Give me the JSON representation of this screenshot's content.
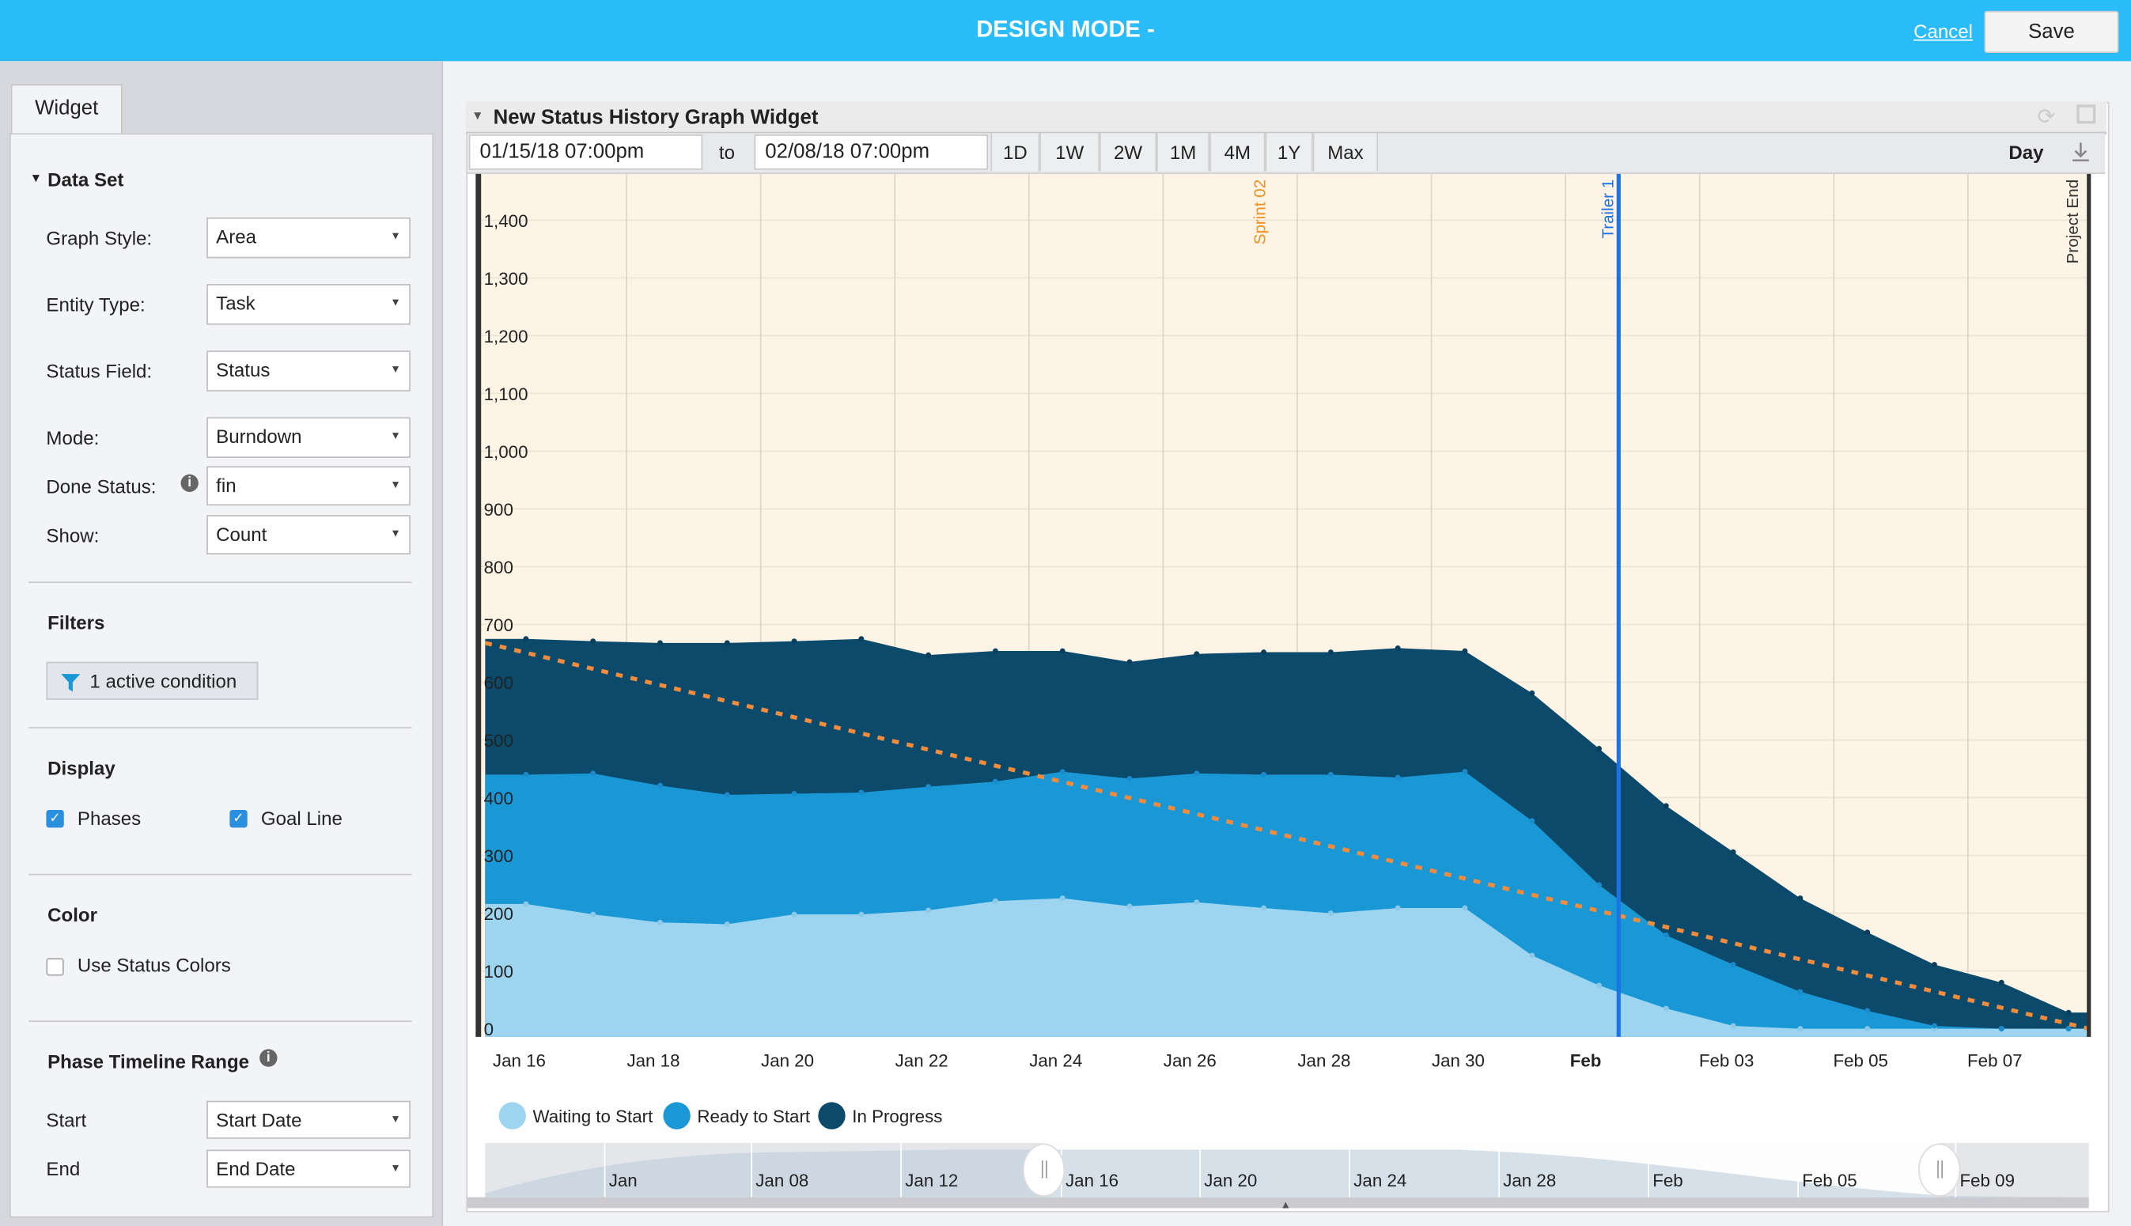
{
  "topbar": {
    "title": "DESIGN MODE -",
    "cancel_label": "Cancel",
    "save_label": "Save"
  },
  "sidebar": {
    "tab_label": "Widget",
    "dataset": {
      "header": "Data Set",
      "fields": [
        {
          "label": "Graph Style:",
          "value": "Area"
        },
        {
          "label": "Entity Type:",
          "value": "Task"
        },
        {
          "label": "Status Field:",
          "value": "Status"
        },
        {
          "label": "Mode:",
          "value": "Burndown"
        },
        {
          "label": "Done Status:",
          "value": "fin"
        },
        {
          "label": "Show:",
          "value": "Count"
        }
      ]
    },
    "filters": {
      "header": "Filters",
      "button_label": "1 active condition"
    },
    "display": {
      "header": "Display",
      "phases_label": "Phases",
      "phases_checked": true,
      "goal_label": "Goal Line",
      "goal_checked": true
    },
    "color": {
      "header": "Color",
      "status_colors_label": "Use Status Colors",
      "status_colors_checked": false
    },
    "phase_range": {
      "header": "Phase Timeline Range",
      "start_label": "Start",
      "start_value": "Start Date",
      "end_label": "End",
      "end_value": "End Date"
    }
  },
  "widget": {
    "title": "New Status History Graph Widget",
    "from_date": "01/15/18 07:00pm",
    "to_label": "to",
    "to_date": "02/08/18 07:00pm",
    "ranges": [
      "1D",
      "1W",
      "2W",
      "1M",
      "4M",
      "1Y",
      "Max"
    ],
    "interval": "Day"
  },
  "chart_data": {
    "type": "area",
    "stacked": true,
    "ylim": [
      0,
      1450
    ],
    "yticks": [
      "0",
      "100",
      "200",
      "300",
      "400",
      "500",
      "600",
      "700",
      "800",
      "900",
      "1,000",
      "1,100",
      "1,200",
      "1,300",
      "1,400"
    ],
    "x": [
      "Jan 16",
      "Jan 17",
      "Jan 18",
      "Jan 19",
      "Jan 20",
      "Jan 21",
      "Jan 22",
      "Jan 23",
      "Jan 24",
      "Jan 25",
      "Jan 26",
      "Jan 27",
      "Jan 28",
      "Jan 29",
      "Jan 30",
      "Jan 31",
      "Feb 01",
      "Feb 02",
      "Feb 03",
      "Feb 04",
      "Feb 05",
      "Feb 06",
      "Feb 07",
      "Feb 08"
    ],
    "xtick_labels": [
      "Jan 16",
      "Jan 18",
      "Jan 20",
      "Jan 22",
      "Jan 24",
      "Jan 26",
      "Jan 28",
      "Jan 30",
      "Feb",
      "Feb 03",
      "Feb 05",
      "Feb 07"
    ],
    "series": [
      {
        "name": "Waiting to Start",
        "color": "#9dd5f0",
        "values": [
          216,
          198,
          184,
          181,
          198,
          198,
          205,
          221,
          226,
          212,
          219,
          209,
          200,
          209,
          209,
          127,
          75,
          35,
          5,
          0,
          0,
          0,
          0,
          0
        ]
      },
      {
        "name": "Ready to Start",
        "color": "#1a98d5",
        "values": [
          224,
          244,
          237,
          224,
          209,
          211,
          214,
          207,
          219,
          221,
          223,
          231,
          240,
          226,
          236,
          233,
          174,
          127,
          106,
          64,
          31,
          5,
          0,
          0
        ]
      },
      {
        "name": "In Progress",
        "color": "#0b4a6b",
        "values": [
          235,
          229,
          247,
          263,
          264,
          266,
          228,
          226,
          209,
          202,
          207,
          212,
          212,
          224,
          209,
          221,
          236,
          224,
          195,
          162,
          136,
          106,
          80,
          28
        ]
      }
    ],
    "goal_line": {
      "color": "#f28c3c",
      "start": 668,
      "end": 0
    },
    "markers": [
      {
        "label": "Sprint 02",
        "date": "Jan 27",
        "color": "#f0901e"
      },
      {
        "label": "Trailer 1",
        "date": "Feb 01",
        "color": "#1a73e8"
      },
      {
        "label": "Project End",
        "date": "Feb 08",
        "color": "#333333"
      }
    ],
    "background_color": "#fdf4e6",
    "grid": true,
    "legend": "bottom-left",
    "navigator": {
      "labels": [
        "Jan",
        "Jan 08",
        "Jan 12",
        "Jan 16",
        "Jan 20",
        "Jan 24",
        "Jan 28",
        "Feb",
        "Feb 05",
        "Feb 09"
      ]
    }
  }
}
